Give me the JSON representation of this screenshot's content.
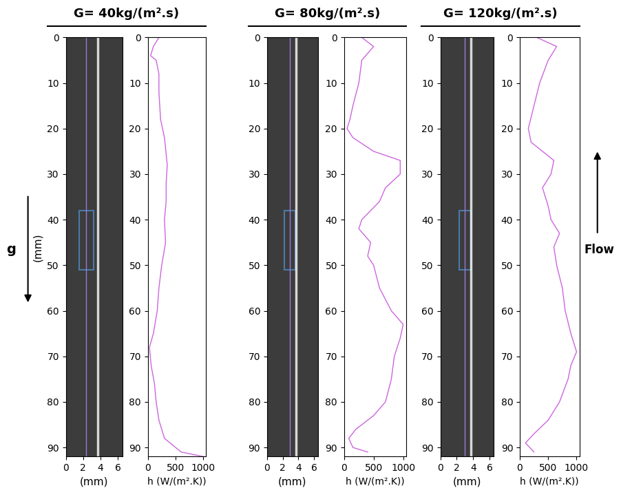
{
  "chart_data": [
    {
      "type": "line",
      "title": "G= 40kg/(m².s)",
      "image": {
        "xlim": [
          0,
          6.5
        ],
        "ylim": [
          92,
          0
        ],
        "xticks": [
          0,
          2,
          4,
          6
        ],
        "yticks": [
          0,
          10,
          20,
          30,
          40,
          50,
          60,
          70,
          80,
          90
        ],
        "xlabel": "(mm)",
        "ylabel": "(mm)",
        "profile_x": 2.3,
        "window": {
          "x": [
            1.5,
            3.2
          ],
          "y": [
            38,
            51
          ]
        }
      },
      "profile": {
        "y": [
          0,
          2,
          4,
          5,
          8,
          12,
          18,
          22,
          28,
          32,
          36,
          40,
          45,
          50,
          55,
          60,
          65,
          68,
          72,
          76,
          80,
          84,
          88,
          91,
          92
        ],
        "values": [
          200,
          100,
          50,
          150,
          200,
          200,
          230,
          300,
          350,
          330,
          330,
          300,
          320,
          250,
          200,
          170,
          100,
          30,
          60,
          120,
          150,
          200,
          300,
          600,
          1000
        ],
        "color": "#cc66dd",
        "xlim": [
          0,
          1050
        ],
        "ylim": [
          92,
          0
        ],
        "xticks": [
          0,
          500,
          1000
        ],
        "yticks": [
          0,
          10,
          20,
          30,
          40,
          50,
          60,
          70,
          80,
          90
        ],
        "xlabel": "h (W/(m².K))"
      }
    },
    {
      "type": "line",
      "title": "G= 80kg/(m².s)",
      "image": {
        "xlim": [
          0,
          6.5
        ],
        "ylim": [
          92,
          0
        ],
        "xticks": [
          0,
          2,
          4,
          6
        ],
        "yticks": [
          0,
          10,
          20,
          30,
          40,
          50,
          60,
          70,
          80,
          90
        ],
        "xlabel": "(mm)",
        "profile_x": 2.9,
        "window": {
          "x": [
            2.2,
            3.6
          ],
          "y": [
            38,
            51
          ]
        }
      },
      "profile": {
        "y": [
          0,
          2,
          5,
          10,
          15,
          18,
          20,
          22,
          25,
          27,
          30,
          33,
          36,
          40,
          42,
          45,
          48,
          50,
          55,
          60,
          63,
          66,
          70,
          75,
          80,
          83,
          86,
          88,
          90,
          91
        ],
        "values": [
          300,
          500,
          300,
          250,
          150,
          100,
          50,
          150,
          500,
          950,
          950,
          700,
          600,
          300,
          250,
          450,
          400,
          500,
          600,
          800,
          1000,
          950,
          850,
          800,
          700,
          500,
          200,
          80,
          150,
          400
        ],
        "color": "#cc66dd",
        "xlim": [
          0,
          1050
        ],
        "ylim": [
          92,
          0
        ],
        "xticks": [
          0,
          500,
          1000
        ],
        "yticks": [
          0,
          10,
          20,
          30,
          40,
          50,
          60,
          70,
          80,
          90
        ],
        "xlabel": "h (W/(m².K))"
      }
    },
    {
      "type": "line",
      "title": "G= 120kg/(m².s)",
      "image": {
        "xlim": [
          0,
          6.5
        ],
        "ylim": [
          92,
          0
        ],
        "xticks": [
          0,
          2,
          4,
          6
        ],
        "yticks": [
          0,
          10,
          20,
          30,
          40,
          50,
          60,
          70,
          80,
          90
        ],
        "xlabel": "(mm)",
        "profile_x": 3.0,
        "window": {
          "x": [
            2.3,
            3.7
          ],
          "y": [
            38,
            51
          ]
        }
      },
      "profile": {
        "y": [
          0,
          2,
          5,
          10,
          15,
          20,
          23,
          27,
          30,
          33,
          37,
          40,
          43,
          46,
          50,
          55,
          60,
          65,
          69,
          72,
          75,
          80,
          84,
          87,
          89,
          91
        ],
        "values": [
          300,
          650,
          500,
          350,
          250,
          150,
          200,
          600,
          550,
          400,
          500,
          550,
          700,
          600,
          650,
          750,
          800,
          900,
          1000,
          900,
          850,
          700,
          500,
          250,
          100,
          250
        ],
        "color": "#cc66dd",
        "xlim": [
          0,
          1050
        ],
        "ylim": [
          92,
          0
        ],
        "xticks": [
          0,
          500,
          1000
        ],
        "yticks": [
          0,
          10,
          20,
          30,
          40,
          50,
          60,
          70,
          80,
          90
        ],
        "xlabel": "h (W/(m².K))"
      }
    }
  ],
  "gravity": "g",
  "flow": "Flow"
}
